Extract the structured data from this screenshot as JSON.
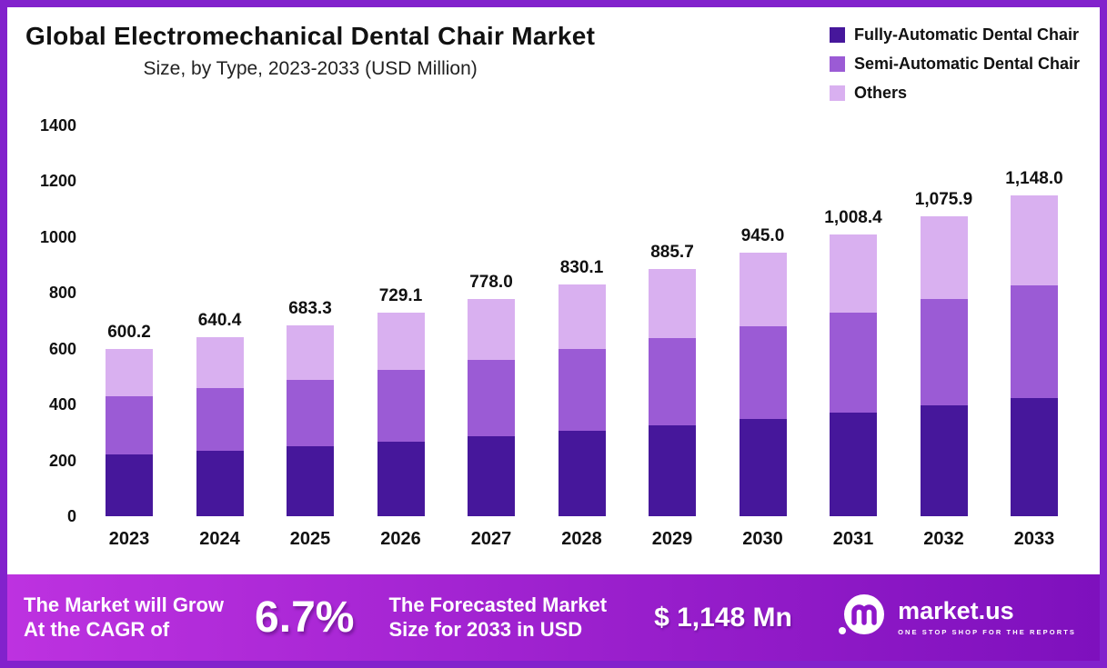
{
  "title": "Global Electromechanical Dental Chair Market",
  "subtitle": "Size, by Type, 2023-2033 (USD Million)",
  "legend": [
    {
      "label": "Fully-Automatic Dental Chair",
      "color": "#46179b"
    },
    {
      "label": "Semi-Automatic Dental Chair",
      "color": "#9b5bd5"
    },
    {
      "label": "Others",
      "color": "#d9b0f0"
    }
  ],
  "chart_data": {
    "type": "bar",
    "stacked": true,
    "title": "Global Electromechanical Dental Chair Market Size, by Type, 2023-2033 (USD Million)",
    "categories": [
      "2023",
      "2024",
      "2025",
      "2026",
      "2027",
      "2028",
      "2029",
      "2030",
      "2031",
      "2032",
      "2033"
    ],
    "series": [
      {
        "name": "Fully-Automatic Dental Chair",
        "color": "#46179b",
        "values": [
          220,
          235,
          250,
          267,
          285,
          305,
          326,
          348,
          372,
          397,
          424
        ]
      },
      {
        "name": "Semi-Automatic Dental Chair",
        "color": "#9b5bd5",
        "values": [
          210,
          224,
          240,
          256,
          274,
          293,
          313,
          334,
          356,
          380,
          403
        ]
      },
      {
        "name": "Others",
        "color": "#d9b0f0",
        "values": [
          170.2,
          181.4,
          193.3,
          206.1,
          219.0,
          232.1,
          246.7,
          263.0,
          280.4,
          298.9,
          321.0
        ]
      }
    ],
    "totals": [
      "600.2",
      "640.4",
      "683.3",
      "729.1",
      "778.0",
      "830.1",
      "885.7",
      "945.0",
      "1,008.4",
      "1,075.9",
      "1,148.0"
    ],
    "xlabel": "",
    "ylabel": "",
    "ylim": [
      0,
      1400
    ],
    "yticks": [
      1400,
      1200,
      1000,
      800,
      600,
      400,
      200,
      0
    ],
    "grid": false,
    "legend_position": "top-right"
  },
  "footer": {
    "cagr_label_line1": "The Market will Grow",
    "cagr_label_line2": "At the CAGR of",
    "cagr_value": "6.7%",
    "forecast_label_line1": "The Forecasted Market",
    "forecast_label_line2": "Size for 2033 in USD",
    "forecast_value": "$ 1,148 Mn",
    "brand": {
      "name": "market.us",
      "tagline": "ONE STOP SHOP FOR THE REPORTS"
    }
  },
  "colors": {
    "frame": "#8222cc",
    "footer_gradient": [
      "#bd32e0",
      "#7e10bd"
    ],
    "text": "#111111",
    "background": "#ffffff"
  }
}
